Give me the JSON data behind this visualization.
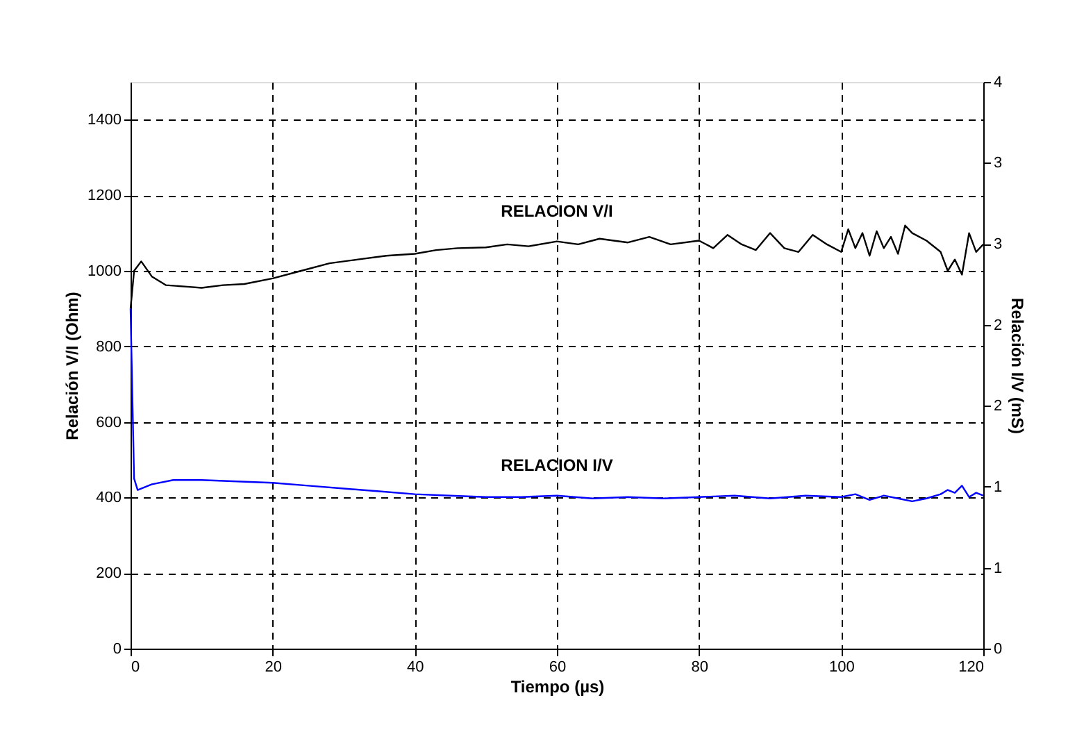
{
  "chart_data": {
    "type": "line",
    "xlabel": "Tiempo (µs)",
    "ylabel": "Relación V/I (Ohm)",
    "y2label": "Relación I/V (mS)",
    "xlim": [
      0,
      120
    ],
    "xticks": [
      0,
      20,
      40,
      60,
      80,
      100,
      120
    ],
    "ylim": [
      0,
      1500
    ],
    "yticks": [
      0,
      200,
      400,
      600,
      800,
      1000,
      1200,
      1400
    ],
    "y2lim": [
      0,
      4
    ],
    "y2ticks": [
      {
        "value": 0,
        "label": "0"
      },
      {
        "value": 0.571,
        "label": "1"
      },
      {
        "value": 1.143,
        "label": "1"
      },
      {
        "value": 1.714,
        "label": "2"
      },
      {
        "value": 2.286,
        "label": "2"
      },
      {
        "value": 2.857,
        "label": "3"
      },
      {
        "value": 3.429,
        "label": "3"
      },
      {
        "value": 4,
        "label": "4"
      }
    ],
    "grid": true,
    "series": [
      {
        "name": "RELACION V/I",
        "color": "#000000",
        "x": [
          0,
          0.5,
          1.5,
          3,
          5,
          8,
          10,
          13,
          16,
          20,
          24,
          28,
          32,
          36,
          40,
          43,
          46,
          50,
          53,
          56,
          60,
          63,
          66,
          70,
          73,
          76,
          80,
          82,
          84,
          86,
          88,
          90,
          92,
          94,
          96,
          98,
          100,
          101,
          102,
          103,
          104,
          105,
          106,
          107,
          108,
          109,
          110,
          112,
          114,
          115,
          116,
          117,
          118,
          119,
          120
        ],
        "values": [
          900,
          1000,
          1025,
          985,
          962,
          958,
          955,
          962,
          965,
          980,
          1000,
          1020,
          1030,
          1040,
          1045,
          1055,
          1060,
          1062,
          1070,
          1065,
          1078,
          1070,
          1085,
          1075,
          1090,
          1070,
          1080,
          1060,
          1095,
          1070,
          1055,
          1100,
          1060,
          1050,
          1095,
          1070,
          1050,
          1110,
          1060,
          1100,
          1040,
          1105,
          1060,
          1090,
          1045,
          1120,
          1100,
          1080,
          1050,
          1000,
          1030,
          990,
          1100,
          1050,
          1070
        ]
      },
      {
        "name": "RELACION I/V",
        "color": "#0000ff",
        "axis": "y2",
        "x": [
          0,
          0.5,
          1,
          3,
          6,
          10,
          15,
          20,
          25,
          30,
          35,
          40,
          45,
          50,
          55,
          60,
          65,
          70,
          75,
          80,
          85,
          90,
          95,
          100,
          102,
          104,
          106,
          108,
          110,
          112,
          114,
          115,
          116,
          117,
          118,
          119,
          120
        ],
        "values": [
          2.4,
          1.2,
          1.12,
          1.16,
          1.19,
          1.19,
          1.18,
          1.17,
          1.15,
          1.13,
          1.11,
          1.09,
          1.08,
          1.07,
          1.07,
          1.08,
          1.06,
          1.07,
          1.06,
          1.07,
          1.08,
          1.06,
          1.08,
          1.07,
          1.09,
          1.05,
          1.08,
          1.06,
          1.04,
          1.06,
          1.09,
          1.12,
          1.1,
          1.15,
          1.07,
          1.1,
          1.08
        ]
      }
    ]
  }
}
